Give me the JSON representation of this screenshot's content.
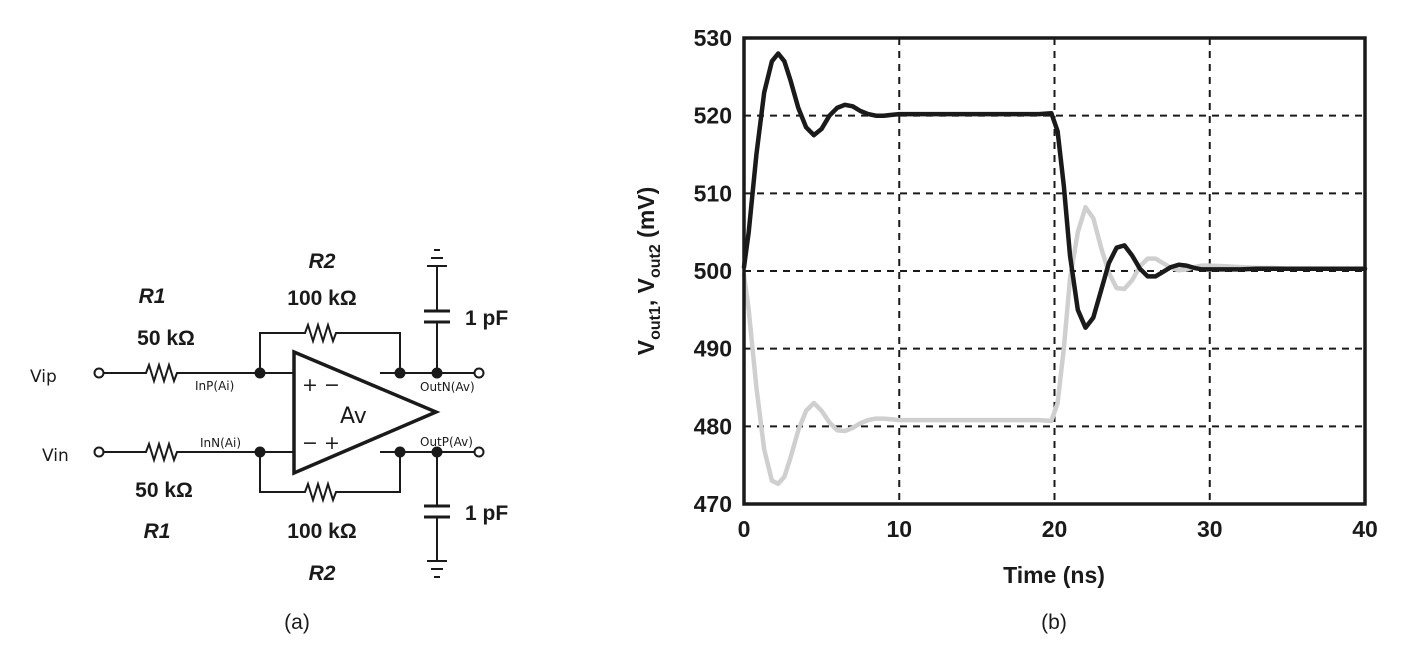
{
  "circuit": {
    "r1_top_name": "R1",
    "r1_top_value": "50 kΩ",
    "r1_bot_name": "R1",
    "r1_bot_value": "50 kΩ",
    "r2_top_name": "R2",
    "r2_top_value": "100 kΩ",
    "r2_bot_name": "R2",
    "r2_bot_value": "100 kΩ",
    "cap_top_value": "1 pF",
    "cap_bot_value": "1 pF",
    "vip_label": "Vip",
    "vin_label": "Vin",
    "inp_label": "InP(Ai)",
    "inn_label": "InN(Ai)",
    "outn_label": "OutN(Av)",
    "outp_label": "OutP(Av)",
    "amp_label": "Av",
    "amp_top_signs": "+ −",
    "amp_bot_signs": "− +",
    "caption": "(a)"
  },
  "chart_caption": "(b)",
  "chart_data": {
    "type": "line",
    "xlabel": "Time (ns)",
    "ylabel_parts": [
      "V",
      "out1",
      ", V",
      "out2",
      " (mV)"
    ],
    "xlim": [
      0,
      40
    ],
    "ylim": [
      470,
      530
    ],
    "xticks": [
      0,
      10,
      20,
      30,
      40
    ],
    "yticks": [
      470,
      480,
      490,
      500,
      510,
      520,
      530
    ],
    "grid": "dashed",
    "series": [
      {
        "color": "#1a1a1a",
        "x": [
          0,
          0.3,
          0.8,
          1.3,
          1.8,
          2.2,
          2.6,
          3.0,
          3.5,
          4.0,
          4.5,
          5.0,
          5.5,
          6.0,
          6.5,
          7.0,
          7.5,
          8.0,
          8.5,
          9.0,
          9.5,
          10,
          11,
          12,
          13,
          14,
          15,
          16,
          17,
          18,
          19,
          19.8,
          20.2,
          20.6,
          21.0,
          21.5,
          22.0,
          22.5,
          23.0,
          23.5,
          24.0,
          24.5,
          25.0,
          25.5,
          26.0,
          26.5,
          27.0,
          27.5,
          28.0,
          28.5,
          29.0,
          29.5,
          30,
          31,
          32,
          33,
          34,
          35,
          36,
          37,
          38,
          39,
          40
        ],
        "y": [
          500.5,
          505,
          515,
          523,
          527,
          528,
          527,
          524.5,
          521,
          518.5,
          517.5,
          518.3,
          520,
          521,
          521.4,
          521.2,
          520.6,
          520.2,
          520,
          520,
          520.1,
          520.2,
          520.2,
          520.2,
          520.2,
          520.2,
          520.2,
          520.2,
          520.2,
          520.2,
          520.2,
          520.3,
          518,
          511,
          502,
          495,
          492.7,
          494,
          497.5,
          501,
          503,
          503.3,
          502,
          500.3,
          499.3,
          499.3,
          499.9,
          500.5,
          500.8,
          500.7,
          500.4,
          500.2,
          500.2,
          500.2,
          500.2,
          500.3,
          500.3,
          500.3,
          500.3,
          500.3,
          500.3,
          500.3,
          500.3
        ]
      },
      {
        "color": "#cfcfcf",
        "x": [
          0,
          0.3,
          0.8,
          1.3,
          1.8,
          2.2,
          2.6,
          3.0,
          3.5,
          4.0,
          4.5,
          5.0,
          5.5,
          6.0,
          6.5,
          7.0,
          7.5,
          8.0,
          8.5,
          9.0,
          9.5,
          10,
          11,
          12,
          13,
          14,
          15,
          16,
          17,
          18,
          19,
          19.8,
          20.2,
          20.6,
          21.0,
          21.5,
          22.0,
          22.5,
          23.0,
          23.5,
          24.0,
          24.5,
          25.0,
          25.5,
          26.0,
          26.5,
          27.0,
          27.5,
          28.0,
          28.5,
          29.0,
          29.5,
          30,
          31,
          32,
          33,
          34,
          35,
          36,
          37,
          38,
          39,
          40
        ],
        "y": [
          499.5,
          495,
          485,
          477,
          473,
          472.6,
          473.5,
          476,
          479.5,
          482,
          483,
          482,
          480.5,
          479.5,
          479.4,
          479.8,
          480.4,
          480.8,
          481,
          481,
          480.9,
          480.8,
          480.8,
          480.8,
          480.8,
          480.8,
          480.8,
          480.8,
          480.8,
          480.8,
          480.8,
          480.7,
          483,
          490,
          499,
          505,
          508.2,
          506.8,
          503,
          499.8,
          497.8,
          497.7,
          498.8,
          500.6,
          501.6,
          501.6,
          501,
          500.4,
          500.1,
          500.2,
          500.5,
          500.7,
          500.7,
          500.6,
          500.5,
          500.4,
          500.4,
          500.3,
          500.3,
          500.3,
          500.3,
          500.3,
          500.3
        ]
      }
    ]
  }
}
